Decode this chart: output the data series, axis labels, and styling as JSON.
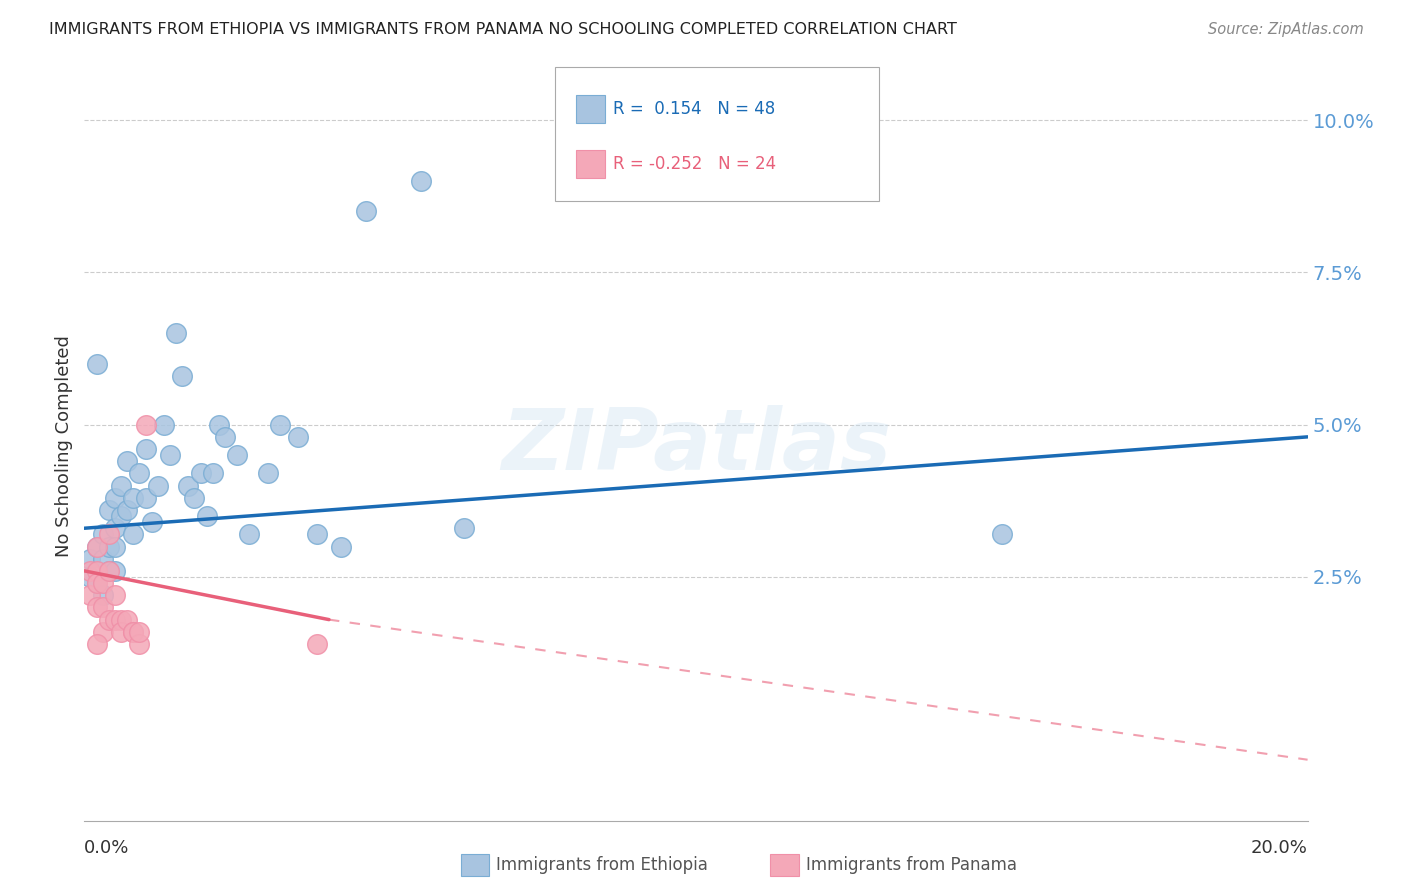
{
  "title": "IMMIGRANTS FROM ETHIOPIA VS IMMIGRANTS FROM PANAMA NO SCHOOLING COMPLETED CORRELATION CHART",
  "source": "Source: ZipAtlas.com",
  "ylabel": "No Schooling Completed",
  "yticks_labels": [
    "2.5%",
    "5.0%",
    "7.5%",
    "10.0%"
  ],
  "ytick_vals": [
    0.025,
    0.05,
    0.075,
    0.1
  ],
  "xticks_labels": [
    "0.0%",
    "20.0%"
  ],
  "xlim": [
    0.0,
    0.2
  ],
  "ylim": [
    -0.015,
    0.108
  ],
  "legend_r_blue": "0.154",
  "legend_n_blue": "48",
  "legend_r_pink": "-0.252",
  "legend_n_pink": "24",
  "blue_color": "#a8c4e0",
  "pink_color": "#f4a8b8",
  "blue_edge": "#7aadd4",
  "pink_edge": "#f090a8",
  "trendline_blue_color": "#1a6bb5",
  "trendline_pink_color": "#e8607a",
  "background_color": "#ffffff",
  "watermark": "ZIPatlas",
  "ethiopia_x": [
    0.001,
    0.001,
    0.002,
    0.002,
    0.002,
    0.003,
    0.003,
    0.003,
    0.004,
    0.004,
    0.004,
    0.005,
    0.005,
    0.005,
    0.005,
    0.006,
    0.006,
    0.007,
    0.007,
    0.008,
    0.008,
    0.009,
    0.01,
    0.01,
    0.011,
    0.012,
    0.013,
    0.014,
    0.015,
    0.016,
    0.017,
    0.018,
    0.019,
    0.02,
    0.021,
    0.022,
    0.023,
    0.025,
    0.027,
    0.03,
    0.032,
    0.035,
    0.038,
    0.042,
    0.046,
    0.055,
    0.062,
    0.15
  ],
  "ethiopia_y": [
    0.028,
    0.025,
    0.03,
    0.024,
    0.06,
    0.028,
    0.022,
    0.032,
    0.036,
    0.03,
    0.026,
    0.038,
    0.033,
    0.03,
    0.026,
    0.04,
    0.035,
    0.044,
    0.036,
    0.038,
    0.032,
    0.042,
    0.046,
    0.038,
    0.034,
    0.04,
    0.05,
    0.045,
    0.065,
    0.058,
    0.04,
    0.038,
    0.042,
    0.035,
    0.042,
    0.05,
    0.048,
    0.045,
    0.032,
    0.042,
    0.05,
    0.048,
    0.032,
    0.03,
    0.085,
    0.09,
    0.033,
    0.032
  ],
  "panama_x": [
    0.001,
    0.001,
    0.002,
    0.002,
    0.002,
    0.002,
    0.003,
    0.003,
    0.003,
    0.004,
    0.004,
    0.004,
    0.005,
    0.005,
    0.006,
    0.006,
    0.007,
    0.008,
    0.008,
    0.009,
    0.009,
    0.01,
    0.038,
    0.002
  ],
  "panama_y": [
    0.026,
    0.022,
    0.026,
    0.02,
    0.024,
    0.03,
    0.024,
    0.02,
    0.016,
    0.032,
    0.026,
    0.018,
    0.022,
    0.018,
    0.018,
    0.016,
    0.018,
    0.016,
    0.016,
    0.014,
    0.016,
    0.05,
    0.014,
    0.014
  ],
  "trendline_blue_x0": 0.0,
  "trendline_blue_y0": 0.033,
  "trendline_blue_x1": 0.2,
  "trendline_blue_y1": 0.048,
  "trendline_pink_solid_x0": 0.0,
  "trendline_pink_solid_y0": 0.026,
  "trendline_pink_solid_x1": 0.04,
  "trendline_pink_solid_y1": 0.018,
  "trendline_pink_dash_x0": 0.04,
  "trendline_pink_dash_y0": 0.018,
  "trendline_pink_dash_x1": 0.2,
  "trendline_pink_dash_y1": -0.005
}
